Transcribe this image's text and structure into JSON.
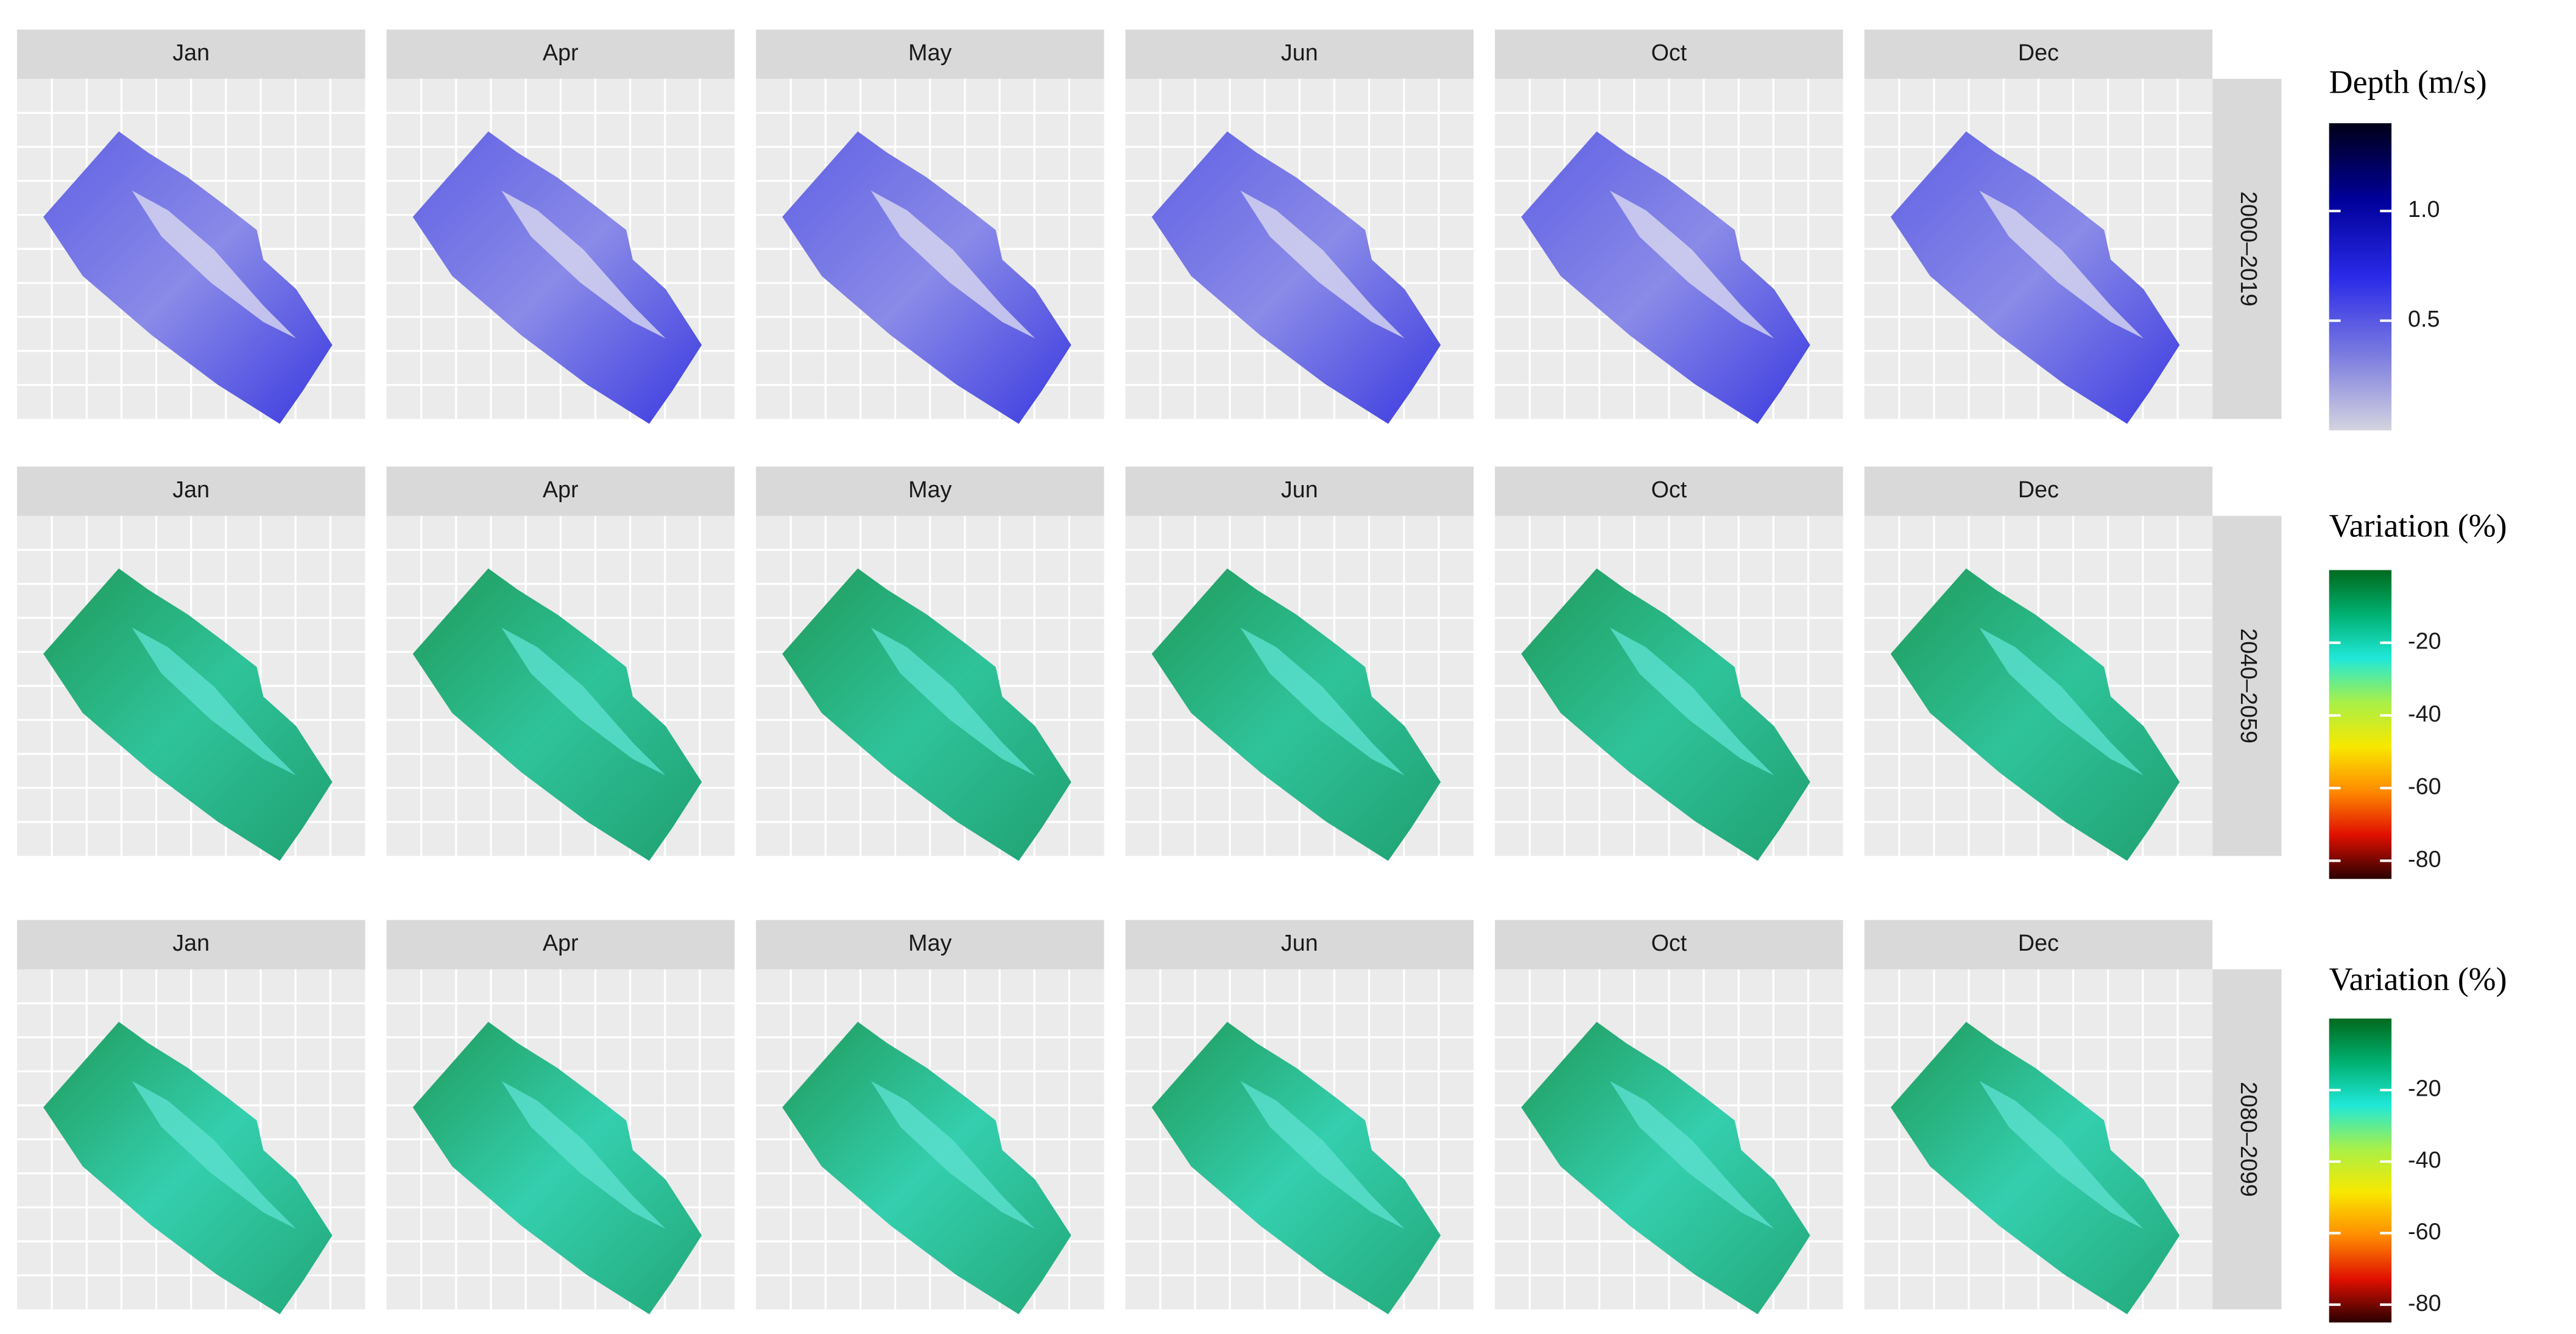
{
  "rows": [
    {
      "period": "2000–2019",
      "months": [
        "Jan",
        "Apr",
        "May",
        "Jun",
        "Oct",
        "Dec"
      ],
      "legend": {
        "title": "Depth (m/s)",
        "lim": [
          0,
          1.4
        ],
        "ticks": [
          0.5,
          {
            "value": 1,
            "label": "1.0"
          }
        ],
        "colors": [
          "#000018",
          "#00009a",
          "#2a2ae8",
          "#7a7ae0",
          "#d4d4e0"
        ]
      }
    },
    {
      "period": "2040–2059",
      "months": [
        "Jan",
        "Apr",
        "May",
        "Jun",
        "Oct",
        "Dec"
      ],
      "legend": {
        "title": "Variation (%)",
        "lim": [
          -85,
          0
        ],
        "ticks": [
          -20,
          -40,
          -60,
          -80
        ],
        "colors": [
          "#006a1e",
          "#00b070",
          "#20e8d8",
          "#a8f048",
          "#f8e800",
          "#ff8c00",
          "#e01000",
          "#2a0000"
        ]
      }
    },
    {
      "period": "2080–2099",
      "months": [
        "Jan",
        "Apr",
        "May",
        "Jun",
        "Oct",
        "Dec"
      ],
      "legend": {
        "title": "Variation (%)",
        "lim": [
          -85,
          0
        ],
        "ticks": [
          -20,
          -40,
          -60,
          -80
        ],
        "colors": [
          "#006a1e",
          "#00b070",
          "#20e8d8",
          "#a8f048",
          "#f8e800",
          "#ff8c00",
          "#e01000",
          "#2a0000"
        ]
      }
    }
  ]
}
